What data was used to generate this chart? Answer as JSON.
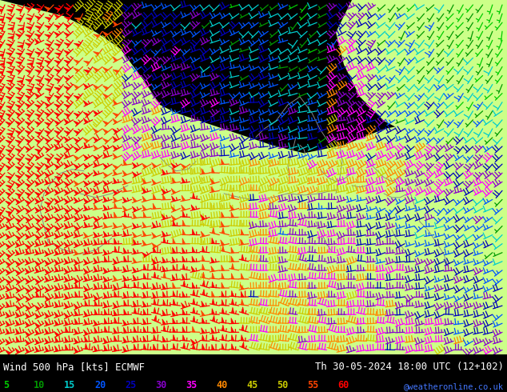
{
  "title_left": "Wind 500 hPa [kts] ECMWF",
  "title_right": "Th 30-05-2024 18:00 UTC (12+102)",
  "credit": "@weatheronline.co.uk",
  "legend_values": [
    5,
    10,
    15,
    20,
    25,
    30,
    35,
    40,
    45,
    50,
    55,
    60
  ],
  "legend_colors": [
    "#00cc00",
    "#009900",
    "#00cccc",
    "#0055ff",
    "#0000bb",
    "#8800cc",
    "#ff00ff",
    "#ff8800",
    "#cccc00",
    "#cccc00",
    "#ff4400",
    "#ff0000"
  ],
  "figsize": [
    6.34,
    4.9
  ],
  "dpi": 100,
  "sea_color": "#d8d8d8",
  "land_color": "#ccff88",
  "coast_color": "#888888",
  "bottom_bg": "#000000",
  "bottom_text_color": "#ffffff",
  "credit_color": "#4477ff",
  "speed_colors": [
    "#00cc00",
    "#009900",
    "#00cccc",
    "#0055ff",
    "#0000bb",
    "#8800cc",
    "#ff00ff",
    "#ff8800",
    "#cccc00",
    "#cccc00",
    "#ff4400",
    "#ff0000"
  ],
  "speed_thresholds": [
    5,
    10,
    15,
    20,
    25,
    30,
    35,
    40,
    45,
    50,
    55,
    60
  ]
}
